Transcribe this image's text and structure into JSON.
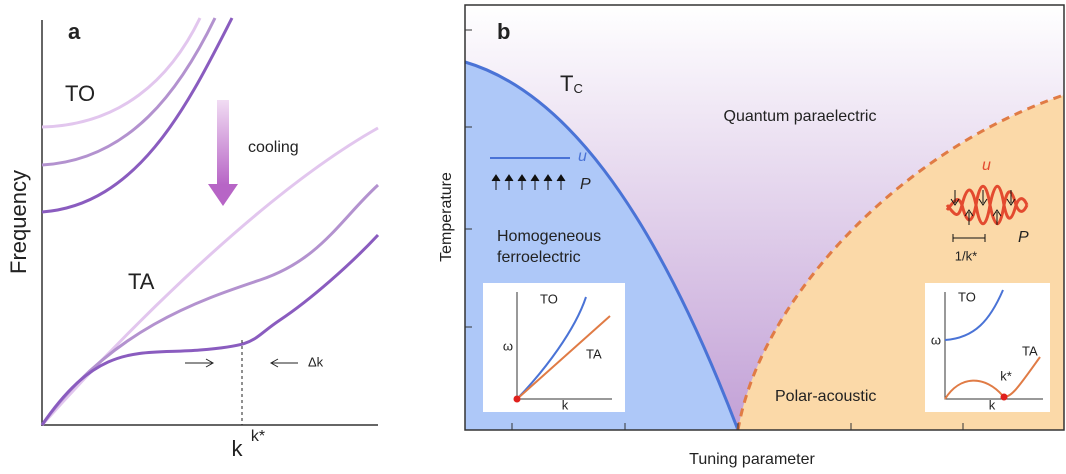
{
  "panel_a": {
    "label": "a",
    "to_label": "TO",
    "arrow_label": "cooling",
    "ta_label": "TA",
    "y_axis": "Frequency",
    "x_axis": "k",
    "marker": "k*",
    "delta": "Δk"
  },
  "panel_b": {
    "label": "b",
    "tc": {
      "main": "T",
      "sub": "C"
    },
    "x_axis": "Tuning parameter",
    "y_axis": "Temperature",
    "regions": {
      "paraelectric": "Quantum paraelectric",
      "ferro": [
        "Homogeneous",
        "ferroelectric"
      ],
      "polar": "Polar-acoustic"
    },
    "ferro_sketch": {
      "u": "u",
      "p": "P"
    },
    "polar_sketch": {
      "u": "u",
      "p": "P",
      "scale": "1/k*"
    },
    "inset_left": {
      "to": "TO",
      "ta": "TA",
      "y": "ω",
      "x": "k"
    },
    "inset_right": {
      "to": "TO",
      "ta": "TA",
      "y": "ω",
      "x": "k",
      "kstar": "k*"
    }
  }
}
